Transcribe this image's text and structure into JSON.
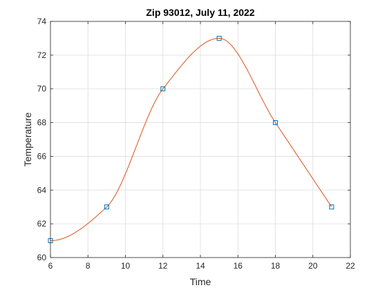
{
  "chart_data": {
    "type": "line",
    "title": "Zip 93012, July 11, 2022",
    "xlabel": "Time",
    "ylabel": "Temperature",
    "xlim": [
      6,
      22
    ],
    "ylim": [
      60,
      74
    ],
    "xticks": [
      "6",
      "8",
      "10",
      "12",
      "14",
      "16",
      "18",
      "20",
      "22"
    ],
    "yticks": [
      "60",
      "62",
      "64",
      "66",
      "68",
      "70",
      "72",
      "74"
    ],
    "grid": true,
    "legend": "none",
    "series": [
      {
        "x": [
          6,
          9,
          12,
          15,
          18,
          21
        ],
        "y": [
          61,
          63,
          70,
          73,
          68,
          63
        ],
        "marker": "square",
        "line": "smooth interpolant",
        "marker_color": "#0072BD",
        "line_color": "#D95319"
      }
    ]
  }
}
